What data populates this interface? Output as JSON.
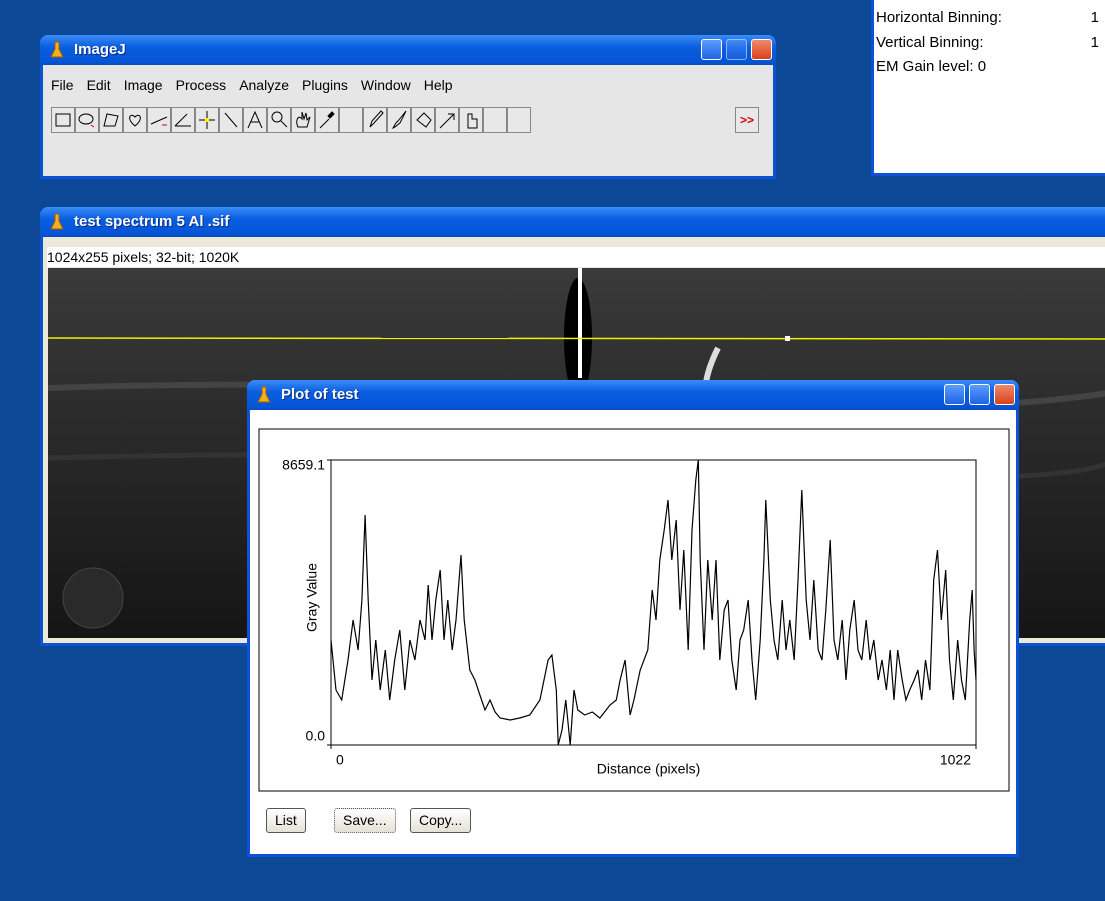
{
  "info_window": {
    "rows": [
      {
        "label": "Horizontal Binning:",
        "value": "1"
      },
      {
        "label": "Vertical Binning:",
        "value": "1"
      },
      {
        "label": "EM Gain level: 0"
      }
    ]
  },
  "imagej_window": {
    "title": "ImageJ",
    "menu": [
      "File",
      "Edit",
      "Image",
      "Process",
      "Analyze",
      "Plugins",
      "Window",
      "Help"
    ],
    "more_tools": ">>"
  },
  "image_window": {
    "title": "test spectrum 5 Al .sif",
    "info": "1024x255 pixels; 32-bit; 1020K"
  },
  "plot_window": {
    "title": "Plot of test",
    "buttons": [
      "List",
      "Save...",
      "Copy..."
    ]
  },
  "chart_data": {
    "type": "line",
    "x_label": "Distance (pixels)",
    "y_label": "Gray Value",
    "color": "#000000",
    "xlim": [
      0,
      1022
    ],
    "xticks": [
      0,
      1022
    ],
    "ylim": [
      0,
      8659.1
    ],
    "yticks": [
      {
        "value": 0,
        "label": "0.0"
      },
      8659.1
    ],
    "x": [
      0,
      8,
      17,
      27,
      35,
      43,
      49,
      54,
      59,
      65,
      71,
      78,
      86,
      93,
      101,
      109,
      117,
      125,
      133,
      141,
      149,
      154,
      160,
      166,
      173,
      179,
      185,
      192,
      198,
      206,
      211,
      220,
      228,
      236,
      244,
      252,
      260,
      268,
      284,
      299,
      315,
      331,
      344,
      350,
      357,
      360,
      366,
      372,
      379,
      385,
      391,
      402,
      414,
      426,
      442,
      452,
      458,
      466,
      474,
      480,
      490,
      502,
      509,
      515,
      521,
      528,
      534,
      540,
      547,
      553,
      559,
      566,
      572,
      578,
      582,
      585,
      591,
      597,
      604,
      610,
      616,
      623,
      629,
      635,
      642,
      648,
      654,
      661,
      667,
      673,
      680,
      686,
      689,
      696,
      702,
      708,
      715,
      721,
      727,
      734,
      740,
      746,
      753,
      759,
      765,
      772,
      778,
      784,
      791,
      797,
      803,
      810,
      816,
      822,
      829,
      835,
      841,
      848,
      854,
      860,
      867,
      873,
      880,
      886,
      892,
      898,
      905,
      911,
      917,
      924,
      930,
      936,
      942,
      949,
      955,
      961,
      967,
      974,
      980,
      986,
      993,
      999,
      1005,
      1012,
      1016,
      1019,
      1022
    ],
    "values": [
      3190,
      1671,
      1367,
      2582,
      3798,
      2886,
      4405,
      6987,
      4405,
      1975,
      3190,
      1671,
      2886,
      1367,
      2582,
      3494,
      1671,
      3190,
      2582,
      3798,
      3190,
      4861,
      3190,
      4405,
      5317,
      3190,
      4405,
      2886,
      3798,
      5772,
      3798,
      2279,
      1975,
      1519,
      1063,
      1367,
      1003,
      820,
      760,
      820,
      911,
      1367,
      2582,
      2734,
      1671,
      0,
      456,
      1367,
      0,
      1671,
      1063,
      911,
      1003,
      820,
      1215,
      1367,
      1975,
      2582,
      911,
      1367,
      2279,
      2886,
      4709,
      3798,
      5620,
      6532,
      7443,
      5620,
      6836,
      4101,
      5924,
      2886,
      6532,
      8051,
      8659,
      5620,
      2886,
      5620,
      3798,
      5620,
      2582,
      4101,
      4405,
      2582,
      1671,
      3190,
      3494,
      4405,
      2582,
      1367,
      3190,
      5620,
      7443,
      4405,
      3190,
      2582,
      4405,
      2886,
      3798,
      2582,
      5013,
      7747,
      4405,
      3190,
      5013,
      2886,
      2582,
      4101,
      6228,
      3190,
      2582,
      3798,
      1975,
      3494,
      4405,
      2886,
      2582,
      3798,
      2582,
      3190,
      1975,
      2582,
      1671,
      2886,
      1367,
      2886,
      1975,
      1367,
      1671,
      1975,
      2279,
      1367,
      2582,
      1671,
      5013,
      5924,
      3798,
      5317,
      2582,
      1367,
      3190,
      1975,
      1367,
      3798,
      4709,
      2886,
      1975
    ]
  }
}
